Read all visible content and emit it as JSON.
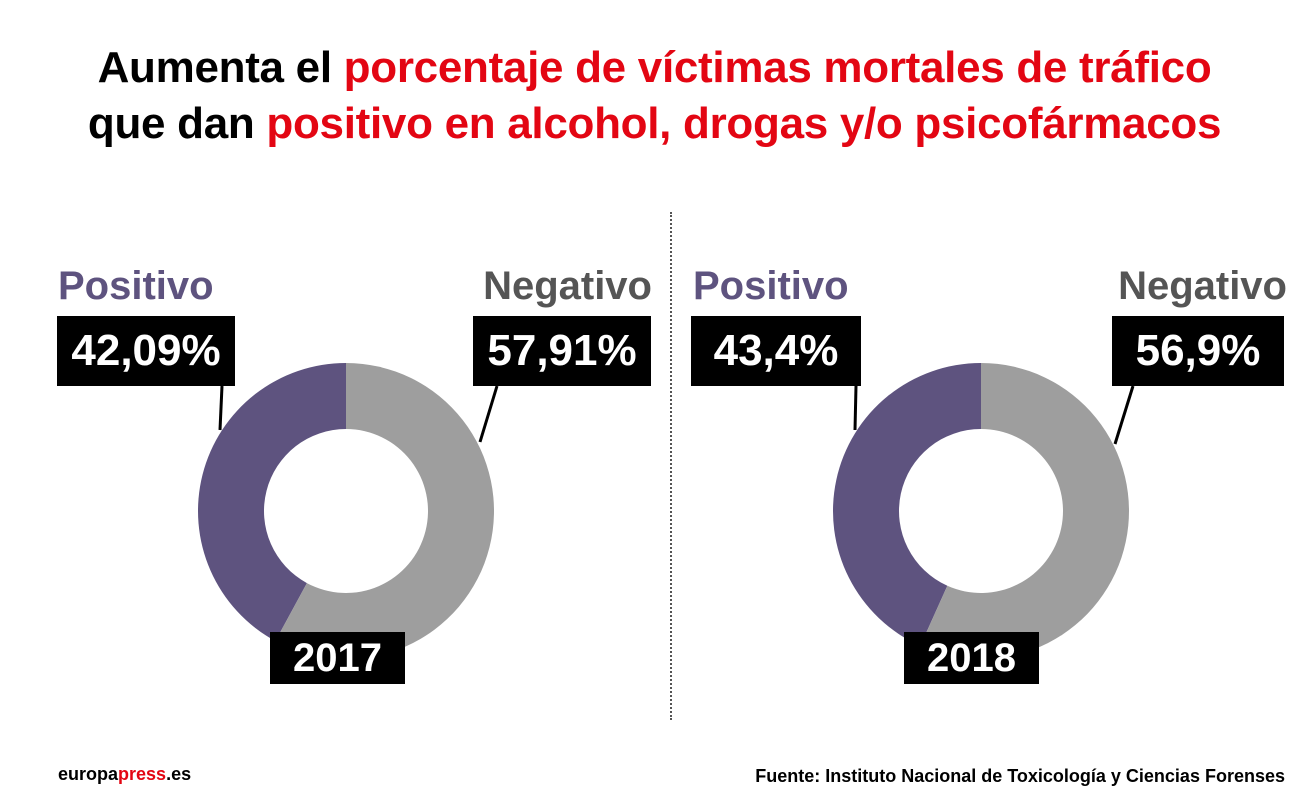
{
  "title": {
    "line1_black": "Aumenta el ",
    "line1_red": "porcentaje de víctimas mortales de tráfico",
    "line2_black": "que dan ",
    "line2_red": "positivo en alcohol, drogas y/o psicofármacos"
  },
  "colors": {
    "accent": "#e30613",
    "positivo": "#5e537f",
    "negativo": "#9e9e9e",
    "box": "#000000"
  },
  "chart_data": [
    {
      "type": "pie",
      "variant": "donut",
      "year": "2017",
      "categories": [
        "Positivo",
        "Negativo"
      ],
      "values": [
        42.09,
        57.91
      ],
      "value_labels": [
        "42,09%",
        "57,91%"
      ]
    },
    {
      "type": "pie",
      "variant": "donut",
      "year": "2018",
      "categories": [
        "Positivo",
        "Negativo"
      ],
      "values": [
        43.4,
        56.9
      ],
      "value_labels": [
        "43,4%",
        "56,9%"
      ]
    }
  ],
  "footer": {
    "brand_black": "europa",
    "brand_red": "press",
    "brand_suffix": ".es",
    "source": "Fuente: Instituto Nacional de Toxicología y Ciencias Forenses"
  }
}
